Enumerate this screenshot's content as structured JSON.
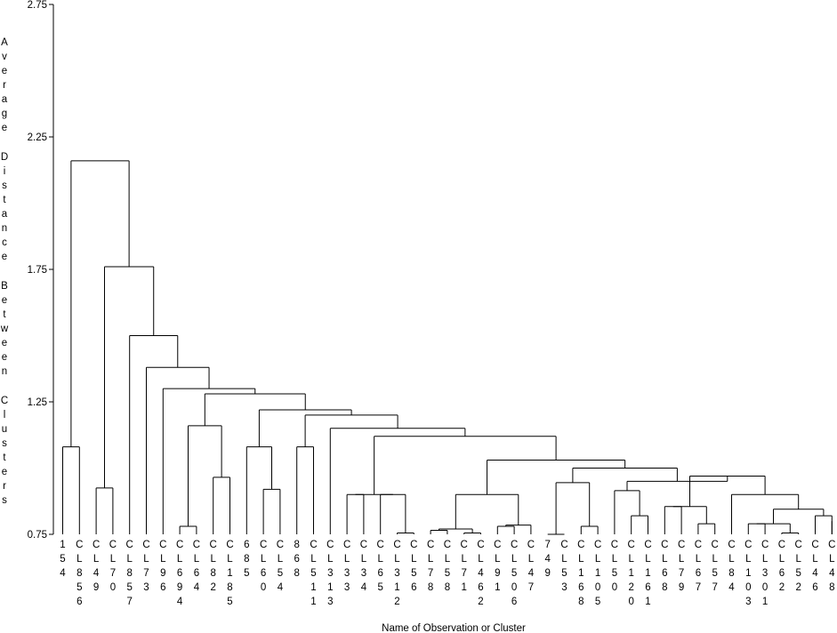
{
  "chart_data": {
    "type": "dendrogram",
    "title": "",
    "xlabel": "Name of Observation or Cluster",
    "ylabel": "Average Distance Between Clusters",
    "ylim": [
      0.75,
      2.75
    ],
    "yticks": [
      "0.75",
      "1.25",
      "1.75",
      "2.25",
      "2.75"
    ],
    "ytick_values": [
      0.75,
      1.25,
      1.75,
      2.25,
      2.75
    ],
    "leaves": [
      "154",
      "CL856",
      "CL49",
      "CL70",
      "CL857",
      "CL73",
      "CL96",
      "CL694",
      "CL64",
      "CL82",
      "CL185",
      "685",
      "CL60",
      "CL54",
      "868",
      "CL511",
      "CL313",
      "CL33",
      "CL34",
      "CL65",
      "CL312",
      "CL56",
      "CL78",
      "CL58",
      "CL71",
      "CL462",
      "CL91",
      "CL506",
      "CL47",
      "749",
      "CL53",
      "CL168",
      "CL105",
      "CL50",
      "CL120",
      "CL161",
      "CL68",
      "CL79",
      "CL67",
      "CL57",
      "CL84",
      "CL103",
      "CL301",
      "CL62",
      "CL52",
      "CL46",
      "CL48"
    ],
    "merges": [
      {
        "id": "C1",
        "left": "L5",
        "right": "L6",
        "height": 0.75
      },
      {
        "id": "C2",
        "left": "L29",
        "right": "L30",
        "height": 0.75
      },
      {
        "id": "C3",
        "left": "L25",
        "right": "L26",
        "height": 0.755
      },
      {
        "id": "C4",
        "left": "L23",
        "right": "L24",
        "height": 0.765
      },
      {
        "id": "C5",
        "left": "L43",
        "right": "L44",
        "height": 0.755
      },
      {
        "id": "C6",
        "left": "L22",
        "right": "L23",
        "height": 0.77
      },
      {
        "id": "C7",
        "left": "L19",
        "right": "L20",
        "height": 0.77
      },
      {
        "id": "C8",
        "left": "L9",
        "right": "L10",
        "height": 0.78
      },
      {
        "id": "C9",
        "left": "L26",
        "right": "L27",
        "height": 0.785
      },
      {
        "id": "C10",
        "left": "L28",
        "right": "L29",
        "height": 0.78
      },
      {
        "id": "C11",
        "left": "L31",
        "right": "L32",
        "height": 0.78
      },
      {
        "id": "C12",
        "left": "L42",
        "right": "L43",
        "height": 0.79
      },
      {
        "id": "C13",
        "left": "L38",
        "right": "L39",
        "height": 0.79
      },
      {
        "id": "C14",
        "left": "L34",
        "right": "L35",
        "height": 0.82
      },
      {
        "id": "C15",
        "left": "L45",
        "right": "L46",
        "height": 0.8
      },
      {
        "id": "C16",
        "left": "L44",
        "right": "L45",
        "height": 0.82
      },
      {
        "id": "C17",
        "left": "L37",
        "right": "L38",
        "height": 0.855
      },
      {
        "id": "C18",
        "left": "L44",
        "right": "L46",
        "height": 0.845
      },
      {
        "id": "C19",
        "left": "L16",
        "right": "L17",
        "height": 0.9
      },
      {
        "id": "C20",
        "left": "L16",
        "right": "L17",
        "height": 0.9
      },
      {
        "id": "C21",
        "left": "L24",
        "right": "L27",
        "height": 0.9
      },
      {
        "id": "C22",
        "left": "L33",
        "right": "L34",
        "height": 0.915
      },
      {
        "id": "C23",
        "left": "L4",
        "right": "L5",
        "height": 0.925
      },
      {
        "id": "C24",
        "left": "L13",
        "right": "L14",
        "height": 0.92
      },
      {
        "id": "C25",
        "left": "L39",
        "right": "L43",
        "height": 0.93
      },
      {
        "id": "C26",
        "left": "L31",
        "right": "L33",
        "height": 0.945
      },
      {
        "id": "C27",
        "left": "L10",
        "right": "L11",
        "height": 0.965
      },
      {
        "id": "C28",
        "left": "L35",
        "right": "L40",
        "height": 0.95
      },
      {
        "id": "C29",
        "left": "L36",
        "right": "L40",
        "height": 0.97
      },
      {
        "id": "C30",
        "left": "L20",
        "right": "L35",
        "height": 1.0
      },
      {
        "id": "C31",
        "left": "L19",
        "right": "L24",
        "height": 1.03
      },
      {
        "id": "C32",
        "left": "L2",
        "right": "L3",
        "height": 1.08
      },
      {
        "id": "C33",
        "left": "L13",
        "right": "L14",
        "height": 1.08
      },
      {
        "id": "C34",
        "left": "L18",
        "right": "L19",
        "height": 1.08
      },
      {
        "id": "C35",
        "left": "L19",
        "right": "L22",
        "height": 1.12
      },
      {
        "id": "C36",
        "left": "L18",
        "right": "L21",
        "height": 1.15
      },
      {
        "id": "C37",
        "left": "L9",
        "right": "L12",
        "height": 1.16
      },
      {
        "id": "C38",
        "left": "L13",
        "right": "L18",
        "height": 1.2
      },
      {
        "id": "C39",
        "left": "L10",
        "right": "L16",
        "height": 1.22
      },
      {
        "id": "C40",
        "left": "L8",
        "right": "L14",
        "height": 1.28
      },
      {
        "id": "C41",
        "left": "L7",
        "right": "L10",
        "height": 1.3
      },
      {
        "id": "C42",
        "left": "L6",
        "right": "L8",
        "height": 1.38
      },
      {
        "id": "C43",
        "left": "L4",
        "right": "L7",
        "height": 1.5
      },
      {
        "id": "C44",
        "left": "L3",
        "right": "L6",
        "height": 1.76
      },
      {
        "id": "C45",
        "left": "L1",
        "right": "L4",
        "height": 2.16
      }
    ]
  }
}
